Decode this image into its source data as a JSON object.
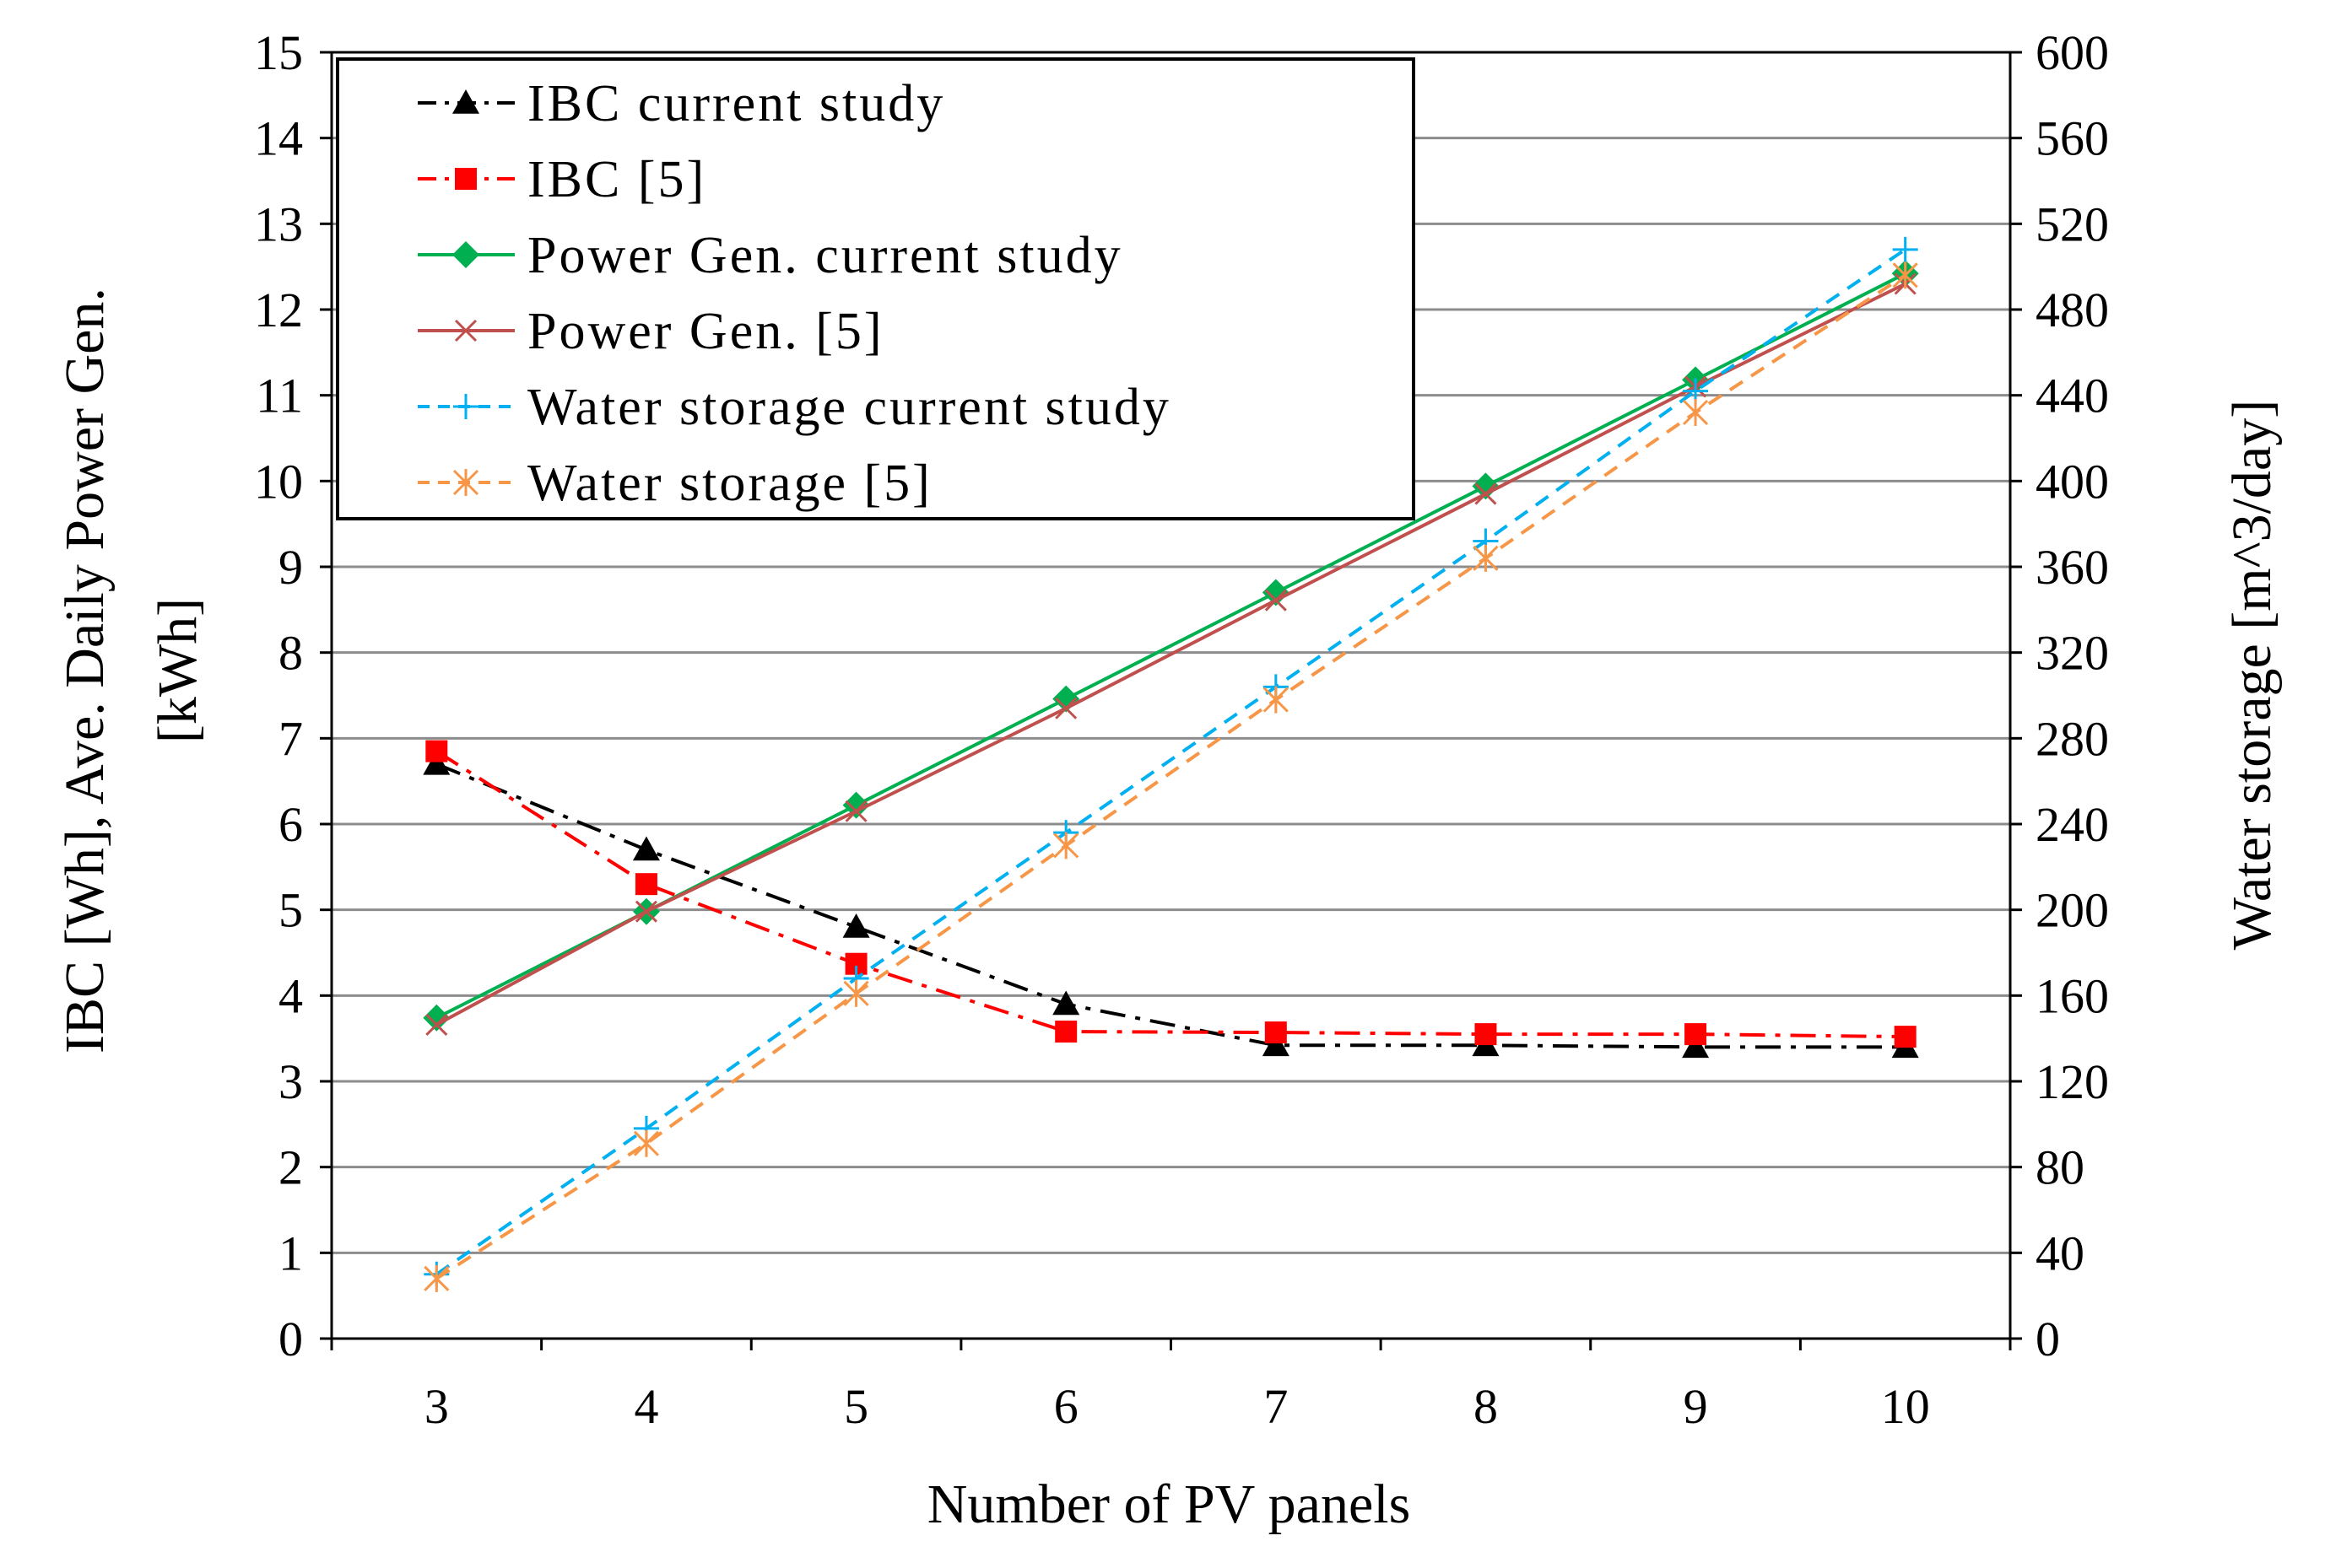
{
  "chart_data": {
    "type": "line",
    "title": "",
    "xlabel": "Number of PV panels",
    "ylabel_line1": "IBC [Wh], Ave. Daily Power Gen.",
    "ylabel_line2": "[kWh]",
    "y2label": "Water storage [m^3/day]",
    "x": [
      3,
      4,
      5,
      6,
      7,
      8,
      9,
      10
    ],
    "xlim": [
      2.5,
      10.5
    ],
    "ylim": [
      0,
      15
    ],
    "y2lim": [
      0,
      600
    ],
    "yticks": [
      0,
      1,
      2,
      3,
      4,
      5,
      6,
      7,
      8,
      9,
      10,
      11,
      12,
      13,
      14,
      15
    ],
    "y2ticks": [
      0,
      40,
      80,
      120,
      160,
      200,
      240,
      280,
      320,
      360,
      400,
      440,
      480,
      520,
      560,
      600
    ],
    "grid": true,
    "legend_position": "top-left",
    "series": [
      {
        "name": "IBC current study",
        "axis": "left",
        "color": "#000000",
        "dash": "dashdot",
        "marker": "triangle",
        "values": [
          6.7,
          5.7,
          4.8,
          3.9,
          3.42,
          3.42,
          3.4,
          3.4
        ]
      },
      {
        "name": "IBC [5]",
        "axis": "left",
        "color": "#ff0000",
        "dash": "dashdot",
        "marker": "square",
        "values": [
          6.85,
          5.3,
          4.37,
          3.58,
          3.57,
          3.55,
          3.55,
          3.52
        ]
      },
      {
        "name": "Power Gen. current study",
        "axis": "left",
        "color": "#00b050",
        "dash": "solid",
        "marker": "diamond",
        "values": [
          3.74,
          4.98,
          6.22,
          7.46,
          8.7,
          9.94,
          11.18,
          12.42
        ]
      },
      {
        "name": "Power Gen. [5]",
        "axis": "left",
        "color": "#c0504d",
        "dash": "solid",
        "marker": "x",
        "values": [
          3.66,
          4.98,
          6.15,
          7.35,
          8.61,
          9.85,
          11.1,
          12.3
        ]
      },
      {
        "name": "Water storage current study",
        "axis": "right",
        "color": "#00b0f0",
        "dash": "dashed",
        "marker": "plus",
        "values": [
          30,
          98,
          168,
          236,
          304,
          372,
          442,
          508
        ]
      },
      {
        "name": "Water storage [5]",
        "axis": "right",
        "color": "#f79646",
        "dash": "dashed",
        "marker": "asterisk",
        "values": [
          28,
          91,
          161,
          230,
          298,
          364,
          432,
          496
        ]
      }
    ]
  }
}
